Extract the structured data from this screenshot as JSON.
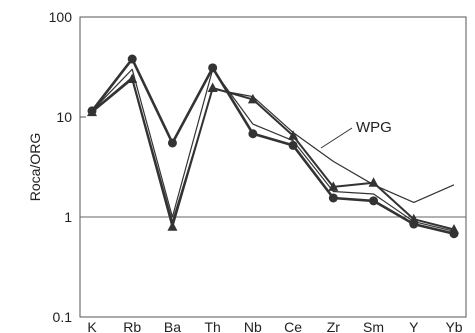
{
  "chart_data": {
    "type": "line",
    "ylabel": "Roca/ORG",
    "yscale": "log",
    "ylim": [
      0.1,
      100
    ],
    "y_ticks": [
      "0.1",
      "1",
      "10",
      "100"
    ],
    "categories": [
      "K",
      "Rb",
      "Ba",
      "Th",
      "Nb",
      "Ce",
      "Zr",
      "Sm",
      "Y",
      "Yb"
    ],
    "reference_line": 1,
    "annotation": "WPG",
    "series": [
      {
        "name": "WPG",
        "marker": "none",
        "values": [
          11.5,
          25,
          0.9,
          19,
          16,
          7,
          3.6,
          2.1,
          1.4,
          2.1
        ]
      },
      {
        "name": "",
        "marker": "circle",
        "values": [
          11.5,
          38,
          5.5,
          31,
          6.8,
          5.2,
          1.55,
          1.45,
          0.85,
          0.68
        ]
      },
      {
        "name": "",
        "marker": "triangle",
        "values": [
          11.2,
          24,
          0.8,
          19.5,
          15,
          6.5,
          2.0,
          2.2,
          0.95,
          0.75
        ]
      },
      {
        "name": "",
        "marker": "none",
        "values": [
          11.5,
          30,
          1.0,
          30,
          8.5,
          5.8,
          1.8,
          1.7,
          0.9,
          0.72
        ]
      }
    ],
    "colors": {
      "line": "#333333",
      "axis": "#555555",
      "background": "#ffffff"
    }
  }
}
